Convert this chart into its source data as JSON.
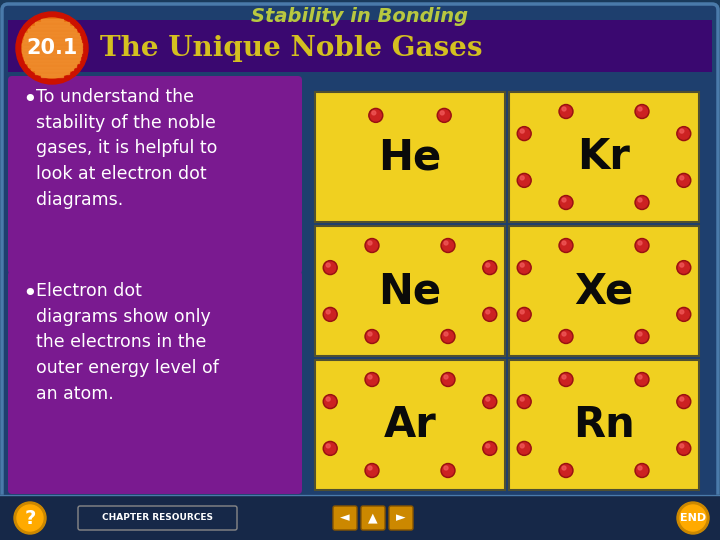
{
  "title": "Stability in Bonding",
  "subtitle": "The Unique Noble Gases",
  "section_num": "20.1",
  "bullet1": "To understand the\nstability of the noble\ngases, it is helpful to\nlook at electron dot\ndiagrams.",
  "bullet2": "Electron dot\ndiagrams show only\nthe electrons in the\nouter energy level of\nan atom.",
  "bg_outer": "#1a3a5c",
  "bg_inner": "#1e3f6e",
  "title_color": "#b8c840",
  "subtitle_color": "#d4c020",
  "bullet_bg": "#7a1a90",
  "yellow_box": "#f0d020",
  "dot_color": "#cc2222",
  "text_color": "#ffffff",
  "bottom_bar": "#162848",
  "circle_red": "#cc1100",
  "circle_orange": "#e87010",
  "circle_stripe": "#f09030",
  "btn_color": "#cc8800",
  "elements": [
    "He",
    "Kr",
    "Ne",
    "Xe",
    "Ar",
    "Rn"
  ]
}
